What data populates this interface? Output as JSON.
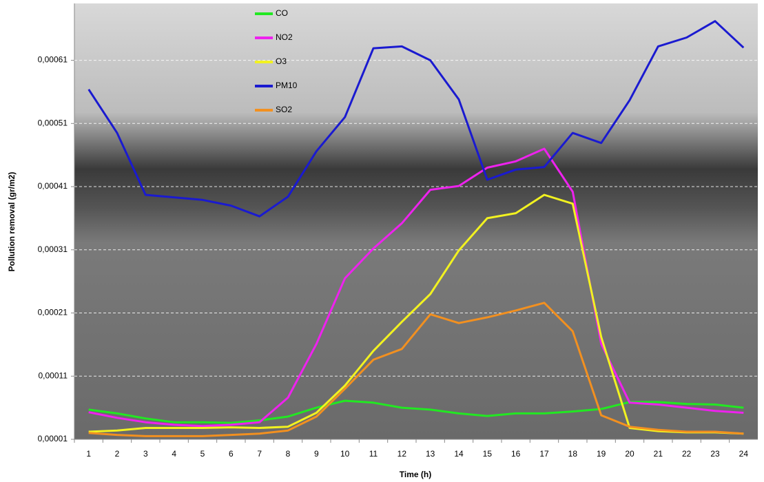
{
  "chart_data": {
    "type": "line",
    "x_label": "Time (h)",
    "y_label": "Pollution removal (gr/m2)",
    "categories": [
      "1",
      "2",
      "3",
      "4",
      "5",
      "6",
      "7",
      "8",
      "9",
      "10",
      "11",
      "12",
      "13",
      "14",
      "15",
      "16",
      "17",
      "18",
      "19",
      "20",
      "21",
      "22",
      "23",
      "24"
    ],
    "series": [
      {
        "name": "CO",
        "color": "#22e822",
        "values": [
          5.7e-05,
          5.1e-05,
          4.3e-05,
          3.7e-05,
          3.7e-05,
          3.6e-05,
          4e-05,
          4.6e-05,
          6e-05,
          7.1e-05,
          6.8e-05,
          6e-05,
          5.7e-05,
          5.1e-05,
          4.7e-05,
          5.1e-05,
          5.1e-05,
          5.4e-05,
          5.8e-05,
          6.9e-05,
          6.9e-05,
          6.6e-05,
          6.5e-05,
          6e-05
        ]
      },
      {
        "name": "NO2",
        "color": "#ee22ee",
        "values": [
          5.3e-05,
          4.4e-05,
          3.7e-05,
          3.3e-05,
          3.1e-05,
          3.3e-05,
          3.7e-05,
          7.6e-05,
          0.000161,
          0.000265,
          0.000312,
          0.000352,
          0.000405,
          0.000411,
          0.00044,
          0.00045,
          0.00047,
          0.000402,
          0.000161,
          6.8e-05,
          6.5e-05,
          6e-05,
          5.5e-05,
          5.2e-05
        ]
      },
      {
        "name": "O3",
        "color": "#f2f220",
        "values": [
          2.2e-05,
          2.4e-05,
          2.8e-05,
          2.8e-05,
          2.8e-05,
          2.9e-05,
          2.8e-05,
          3e-05,
          5.2e-05,
          9.5e-05,
          0.00015,
          0.000196,
          0.00024,
          0.000309,
          0.00036,
          0.000368,
          0.000397,
          0.000383,
          0.000172,
          2.8e-05,
          2.3e-05,
          2.1e-05,
          2.1e-05,
          1.9e-05
        ]
      },
      {
        "name": "PM10",
        "color": "#1a1ad0",
        "values": [
          0.000564,
          0.000495,
          0.000397,
          0.000393,
          0.000389,
          0.00038,
          0.000363,
          0.000394,
          0.000466,
          0.00052,
          0.000629,
          0.000632,
          0.00061,
          0.000548,
          0.000421,
          0.000437,
          0.000441,
          0.000495,
          0.000479,
          0.000547,
          0.000632,
          0.000646,
          0.000672,
          0.00063
        ]
      },
      {
        "name": "SO2",
        "color": "#f29020",
        "values": [
          2e-05,
          1.7e-05,
          1.5e-05,
          1.5e-05,
          1.5e-05,
          1.7e-05,
          1.9e-05,
          2.4e-05,
          4.6e-05,
          9e-05,
          0.000136,
          0.000153,
          0.000208,
          0.000194,
          0.000203,
          0.000214,
          0.000226,
          0.000181,
          4.8e-05,
          3e-05,
          2.5e-05,
          2.2e-05,
          2.2e-05,
          1.9e-05
        ]
      }
    ],
    "ylim": [
      1e-05,
      0.0007
    ],
    "yticks": [
      {
        "value": 1e-05,
        "label": "0,00001"
      },
      {
        "value": 0.00011,
        "label": "0,00011"
      },
      {
        "value": 0.00021,
        "label": "0,00021"
      },
      {
        "value": 0.00031,
        "label": "0,00031"
      },
      {
        "value": 0.00041,
        "label": "0,00041"
      },
      {
        "value": 0.00051,
        "label": "0,00051"
      },
      {
        "value": 0.00061,
        "label": "0,00061"
      }
    ],
    "grid": true
  }
}
